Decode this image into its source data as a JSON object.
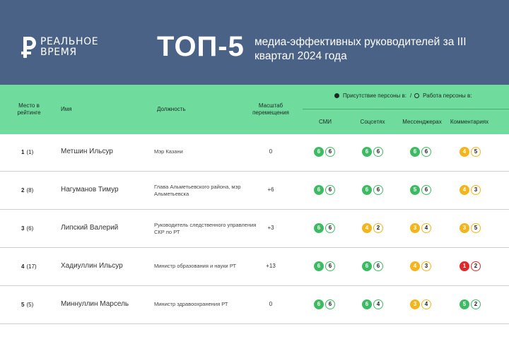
{
  "header": {
    "logo_line1": "РЕАЛЬНОЕ",
    "logo_line2": "ВРЕМЯ",
    "title": "ТОП-5",
    "subtitle": "медиа-эффективных руководителей за III квартал 2024 года"
  },
  "columns": {
    "rank": "Место в рейтинге",
    "name": "Имя",
    "position": "Должность",
    "scale": "Масштаб перемещения",
    "media": "СМИ",
    "social": "Соцсетях",
    "messengers": "Мессенджерах",
    "comments": "Комментариях"
  },
  "legend": {
    "presence": "Присутствие персоны в:",
    "separator": "/",
    "work": "Работа персоны в:"
  },
  "colors": {
    "header_bg": "#4a6285",
    "green_bar": "#6fdc9d",
    "green": "#3dbb63",
    "yellow": "#f2b51b",
    "red": "#e02a2a"
  },
  "rows": [
    {
      "rank": "1",
      "prev": "(1)",
      "name": "Метшин Ильсур",
      "position": "Мэр Казани",
      "scale": "0",
      "scores": [
        {
          "presence": "6",
          "work": "6",
          "color": "green"
        },
        {
          "presence": "6",
          "work": "6",
          "color": "green"
        },
        {
          "presence": "6",
          "work": "6",
          "color": "green"
        },
        {
          "presence": "4",
          "work": "5",
          "color": "yellow"
        }
      ]
    },
    {
      "rank": "2",
      "prev": "(8)",
      "name": "Нагуманов Тимур",
      "position": "Глава Альметьевского района, мэр Альметьевска",
      "scale": "+6",
      "scores": [
        {
          "presence": "6",
          "work": "6",
          "color": "green"
        },
        {
          "presence": "6",
          "work": "6",
          "color": "green"
        },
        {
          "presence": "5",
          "work": "6",
          "color": "green"
        },
        {
          "presence": "4",
          "work": "3",
          "color": "yellow"
        }
      ]
    },
    {
      "rank": "3",
      "prev": "(6)",
      "name": "Липский Валерий",
      "position": "Руководитель следственного управления СКР по РТ",
      "scale": "+3",
      "scores": [
        {
          "presence": "6",
          "work": "6",
          "color": "green"
        },
        {
          "presence": "4",
          "work": "2",
          "color": "yellow"
        },
        {
          "presence": "3",
          "work": "4",
          "color": "yellow"
        },
        {
          "presence": "3",
          "work": "5",
          "color": "yellow"
        }
      ]
    },
    {
      "rank": "4",
      "prev": "(17)",
      "name": "Хадиуллин Ильсур",
      "position": "Министр образования и науки РТ",
      "scale": "+13",
      "scores": [
        {
          "presence": "6",
          "work": "6",
          "color": "green"
        },
        {
          "presence": "6",
          "work": "6",
          "color": "green"
        },
        {
          "presence": "4",
          "work": "3",
          "color": "yellow"
        },
        {
          "presence": "1",
          "work": "2",
          "color": "red"
        }
      ]
    },
    {
      "rank": "5",
      "prev": "(5)",
      "name": "Миннуллин Марсель",
      "position": "Министр здравоохранения РТ",
      "scale": "0",
      "scores": [
        {
          "presence": "6",
          "work": "6",
          "color": "green"
        },
        {
          "presence": "6",
          "work": "4",
          "color": "green"
        },
        {
          "presence": "3",
          "work": "4",
          "color": "yellow"
        },
        {
          "presence": "5",
          "work": "2",
          "color": "green"
        }
      ]
    }
  ]
}
